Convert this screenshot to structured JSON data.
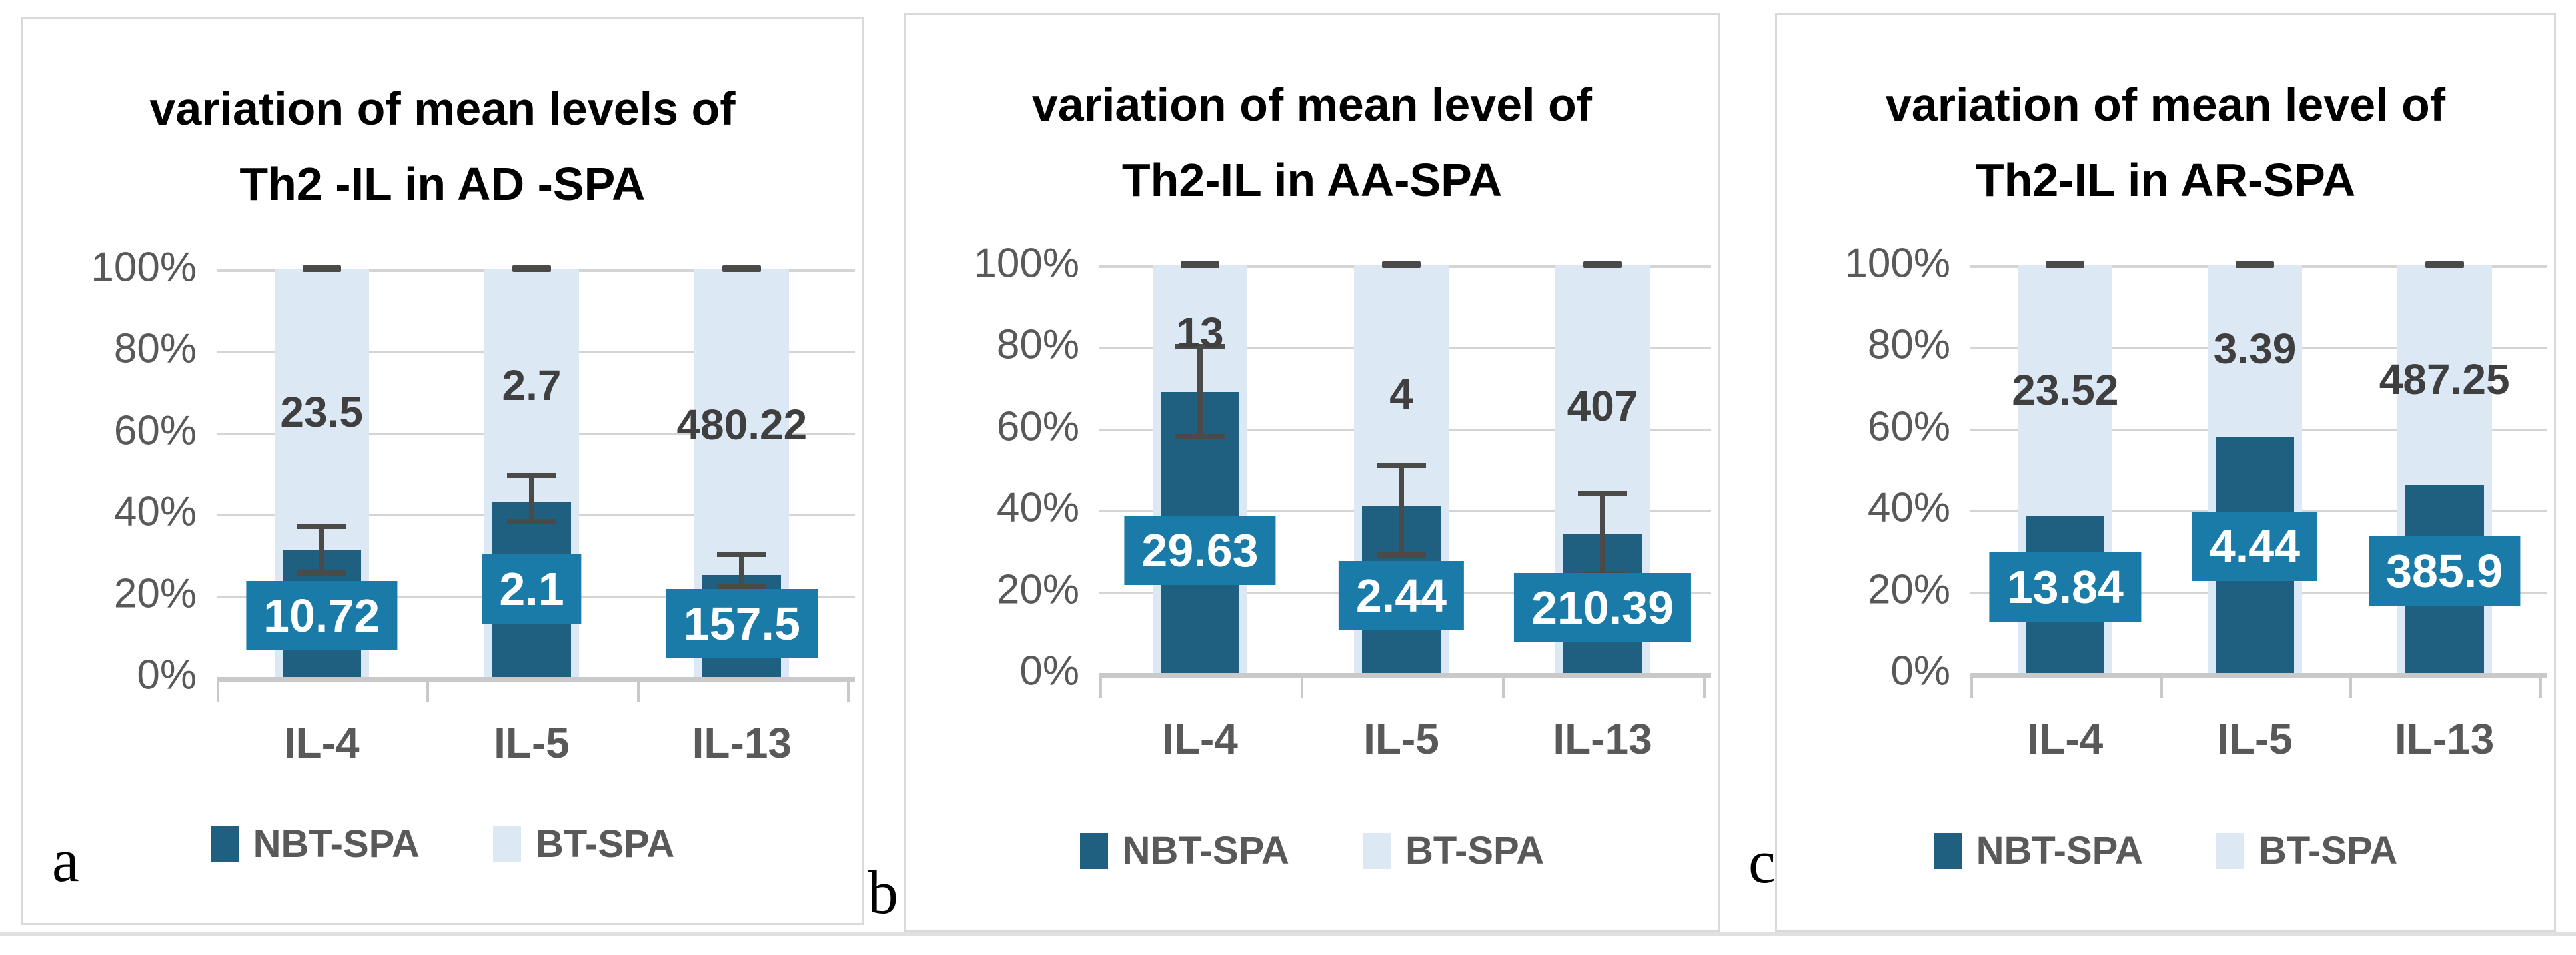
{
  "colors": {
    "nbt_bar": "#1f5f7f",
    "nbt_label_box": "#1a7aa8",
    "bt_bar": "#dce8f4",
    "bt_label_text": "#3f3f3f",
    "axis_text": "#595959",
    "gridline": "#d4d4d4",
    "axis_line": "#c9c9c9",
    "error_bar": "#4a4a48",
    "panel_border": "#d9d9d9",
    "title_text": "#000000"
  },
  "legend_labels": [
    "NBT-SPA",
    "BT-SPA"
  ],
  "chart_data": [
    {
      "type": "bar",
      "subtype": "percent-stacked-column",
      "panel_letter": "a",
      "title": "variation of mean levels of Th2 -IL in AD -SPA",
      "title_lines": [
        "variation of mean levels of",
        "Th2 -IL in AD -SPA"
      ],
      "categories": [
        "IL-4",
        "IL-5",
        "IL-13"
      ],
      "y_tick_labels": [
        "100%",
        "80%",
        "60%",
        "40%",
        "20%",
        "0%"
      ],
      "ylim": [
        0,
        100
      ],
      "grid": true,
      "legend_position": "bottom",
      "series": [
        {
          "name": "NBT-SPA",
          "role": "nbt",
          "segment_pct": [
            31,
            43,
            25
          ],
          "value_labels": [
            "10.72",
            "2.1",
            "157.5"
          ],
          "label_center_pct": [
            15,
            21.5,
            13
          ]
        },
        {
          "name": "BT-SPA",
          "role": "bt",
          "segment_pct": [
            69,
            57,
            75
          ],
          "value_labels": [
            "23.5",
            "2.7",
            "480.22"
          ],
          "label_center_pct": [
            65,
            71.5,
            62
          ]
        }
      ],
      "error_bars": {
        "series": "NBT-SPA",
        "top_pct": [
          37,
          49.5,
          30
        ],
        "bottom_pct": [
          25.5,
          38,
          22
        ],
        "cap_at_100_pct": true
      }
    },
    {
      "type": "bar",
      "subtype": "percent-stacked-column",
      "panel_letter": "b",
      "title": "variation of mean level of Th2-IL in AA-SPA",
      "title_lines": [
        "variation of mean level of",
        "Th2-IL in AA-SPA"
      ],
      "categories": [
        "IL-4",
        "IL-5",
        "IL-13"
      ],
      "y_tick_labels": [
        "100%",
        "80%",
        "60%",
        "40%",
        "20%",
        "0%"
      ],
      "ylim": [
        0,
        100
      ],
      "grid": true,
      "legend_position": "bottom",
      "series": [
        {
          "name": "NBT-SPA",
          "role": "nbt",
          "segment_pct": [
            69,
            41,
            34
          ],
          "value_labels": [
            "29.63",
            "2.44",
            "210.39"
          ],
          "label_center_pct": [
            30,
            19,
            16
          ]
        },
        {
          "name": "BT-SPA",
          "role": "bt",
          "segment_pct": [
            31,
            59,
            66
          ],
          "value_labels": [
            "13",
            "4",
            "407"
          ],
          "label_center_pct": [
            83.5,
            68.5,
            65.5
          ]
        }
      ],
      "error_bars": {
        "series": "NBT-SPA",
        "top_pct": [
          80,
          51,
          44
        ],
        "bottom_pct": [
          58,
          29,
          24
        ],
        "cap_at_100_pct": true
      }
    },
    {
      "type": "bar",
      "subtype": "percent-stacked-column",
      "panel_letter": "c",
      "title": "variation of mean level of Th2-IL in AR-SPA",
      "title_lines": [
        "variation of mean level of",
        "Th2-IL in AR-SPA"
      ],
      "categories": [
        "IL-4",
        "IL-5",
        "IL-13"
      ],
      "y_tick_labels": [
        "100%",
        "80%",
        "60%",
        "40%",
        "20%",
        "0%"
      ],
      "ylim": [
        0,
        100
      ],
      "grid": true,
      "legend_position": "bottom",
      "series": [
        {
          "name": "NBT-SPA",
          "role": "nbt",
          "segment_pct": [
            38.5,
            58,
            46
          ],
          "value_labels": [
            "13.84",
            "4.44",
            "385.9"
          ],
          "label_center_pct": [
            21,
            31,
            25
          ]
        },
        {
          "name": "BT-SPA",
          "role": "bt",
          "segment_pct": [
            61.5,
            42,
            54
          ],
          "value_labels": [
            "23.52",
            "3.39",
            "487.25"
          ],
          "label_center_pct": [
            69.5,
            79.5,
            72
          ]
        }
      ],
      "error_bars": {
        "series": "NBT-SPA",
        "top_pct": null,
        "bottom_pct": null,
        "cap_at_100_pct": true
      }
    }
  ]
}
